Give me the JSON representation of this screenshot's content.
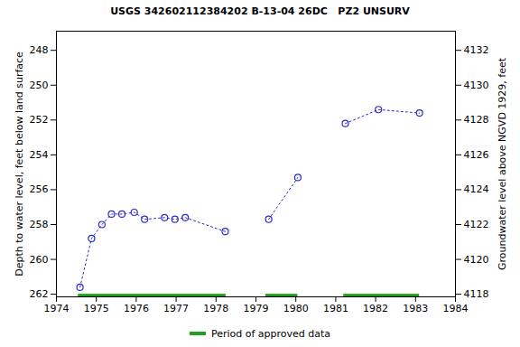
{
  "chart_data": {
    "type": "line",
    "title": "USGS 342602112384202 B-13-04 26DC   PZ2 UNSURV",
    "y_label": "Depth to water level, feet below land surface",
    "y2_label": "Groundwater level above NGVD 1929, feet",
    "x": [
      1974.59,
      1974.88,
      1975.14,
      1975.38,
      1975.64,
      1975.95,
      1976.21,
      1976.71,
      1976.97,
      1977.23,
      1978.23,
      null,
      1979.32,
      1980.05,
      null,
      1981.24,
      1982.07,
      1983.1
    ],
    "values": [
      261.6,
      258.8,
      258.0,
      257.4,
      257.4,
      257.3,
      257.7,
      257.6,
      257.7,
      257.6,
      258.4,
      null,
      257.7,
      255.3,
      null,
      252.2,
      251.4,
      251.6
    ],
    "color": "#2a2ad0",
    "marker": "circle",
    "line_style": "dotted",
    "approved_periods": {
      "name": "Period of approved data",
      "color": "#1fa01f",
      "start": [
        1974.55,
        1979.25,
        1981.2
      ],
      "end": [
        1978.25,
        1980.05,
        1983.1
      ]
    },
    "legend": "bottom",
    "xlim": [
      1974,
      1984
    ],
    "xticks": [
      1974,
      1975,
      1976,
      1977,
      1978,
      1979,
      1980,
      1981,
      1982,
      1983,
      1984
    ],
    "ylim": [
      262.15,
      246.9
    ],
    "yticks": [
      248,
      250,
      252,
      254,
      256,
      258,
      260,
      262
    ],
    "y2lim": [
      4117.85,
      4133.1
    ],
    "y2ticks": [
      4118,
      4120,
      4122,
      4124,
      4126,
      4128,
      4130,
      4132
    ]
  }
}
